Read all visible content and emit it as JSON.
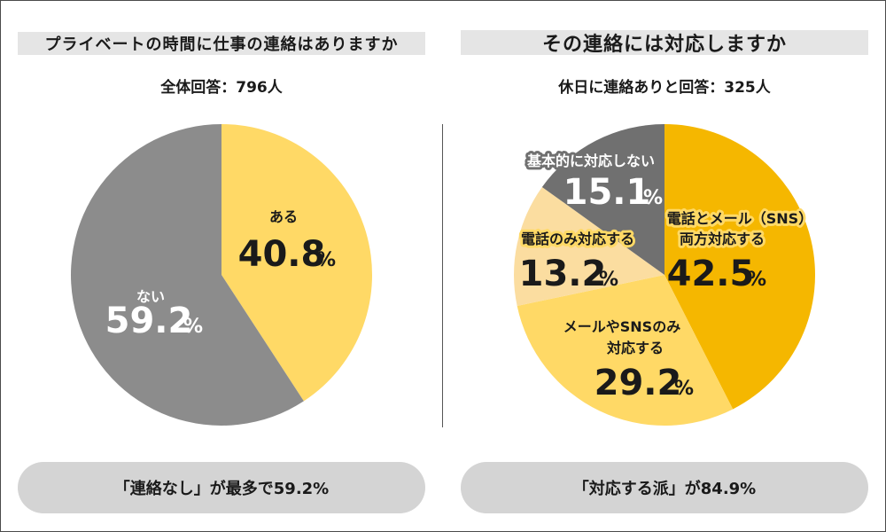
{
  "left_panel": {
    "title": "プライベートの時間に仕事の連絡はありますか",
    "base": "全体回答：796人",
    "summary": "「連絡なし」が最多で59.2%"
  },
  "right_panel": {
    "title": "その連絡には対応しますか",
    "base": "休日に連絡ありと回答：325人",
    "summary": "「対応する派」が84.9%"
  },
  "chart_data": [
    {
      "type": "pie",
      "title": "プライベートの時間に仕事の連絡はありますか",
      "categories": [
        "ある",
        "ない"
      ],
      "values": [
        40.8,
        59.2
      ],
      "value_texts": [
        "40.8",
        "59.2"
      ],
      "unit": "%",
      "colors": [
        "#ffd966",
        "#8c8c8c"
      ],
      "label_colors": [
        "#1a1a1a",
        "#ffffff"
      ]
    },
    {
      "type": "pie",
      "title": "その連絡には対応しますか",
      "categories": [
        "電話とメール（SNS）両方対応する",
        "メールやSNSのみ対応する",
        "電話のみ対応する",
        "基本的に対応しない"
      ],
      "label_lines": [
        [
          "電話とメール（SNS）",
          "両方対応する"
        ],
        [
          "メールやSNSのみ",
          "対応する"
        ],
        [
          "電話のみ対応する"
        ],
        [
          "基本的に対応しない"
        ]
      ],
      "values": [
        42.5,
        29.2,
        13.2,
        15.1
      ],
      "value_texts": [
        "42.5",
        "29.2",
        "13.2",
        "15.1"
      ],
      "unit": "%",
      "colors": [
        "#f5b700",
        "#ffd966",
        "#fbdda0",
        "#707070"
      ],
      "label_colors": [
        "#1a1a1a",
        "#1a1a1a",
        "#1a1a1a",
        "#ffffff"
      ]
    }
  ]
}
